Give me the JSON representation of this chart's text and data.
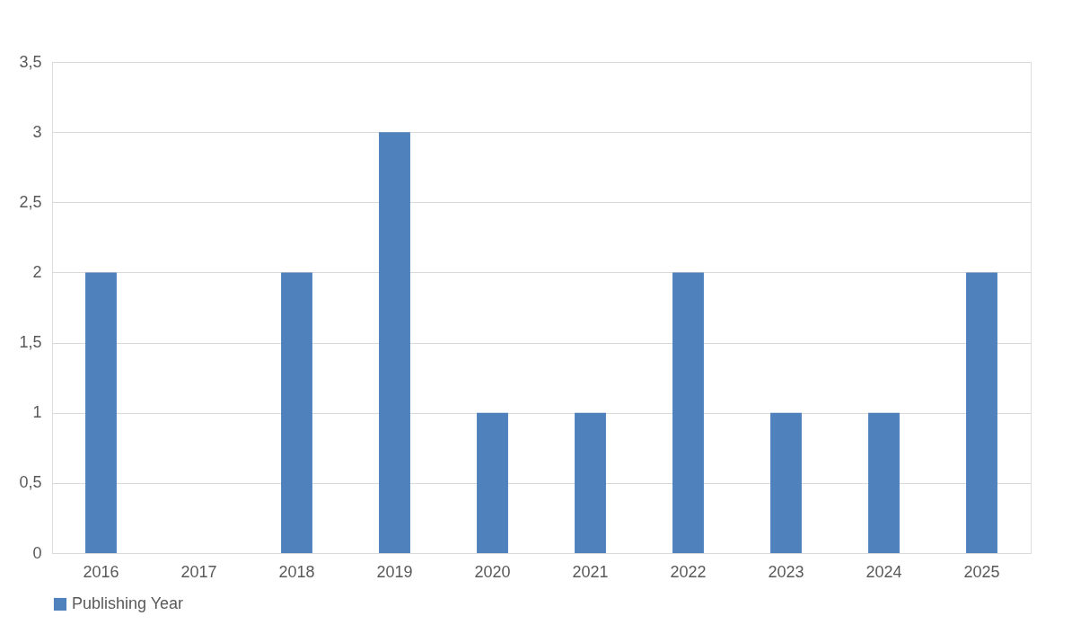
{
  "chart_data": {
    "type": "bar",
    "categories": [
      "2016",
      "2017",
      "2018",
      "2019",
      "2020",
      "2021",
      "2022",
      "2023",
      "2024",
      "2025"
    ],
    "series": [
      {
        "name": "Publishing Year",
        "color": "#4f81bd",
        "values": [
          2,
          0,
          2,
          3,
          1,
          1,
          2,
          1,
          1,
          2
        ]
      }
    ],
    "ylim": [
      0,
      3.5
    ],
    "yticks": [
      0,
      {
        "value": 0.5,
        "label": "0,5"
      },
      1,
      {
        "value": 1.5,
        "label": "1,5"
      },
      2,
      {
        "value": 2.5,
        "label": "2,5"
      },
      3,
      {
        "value": 3.5,
        "label": "3,5"
      }
    ],
    "grid": "y",
    "legend": "bottom"
  }
}
